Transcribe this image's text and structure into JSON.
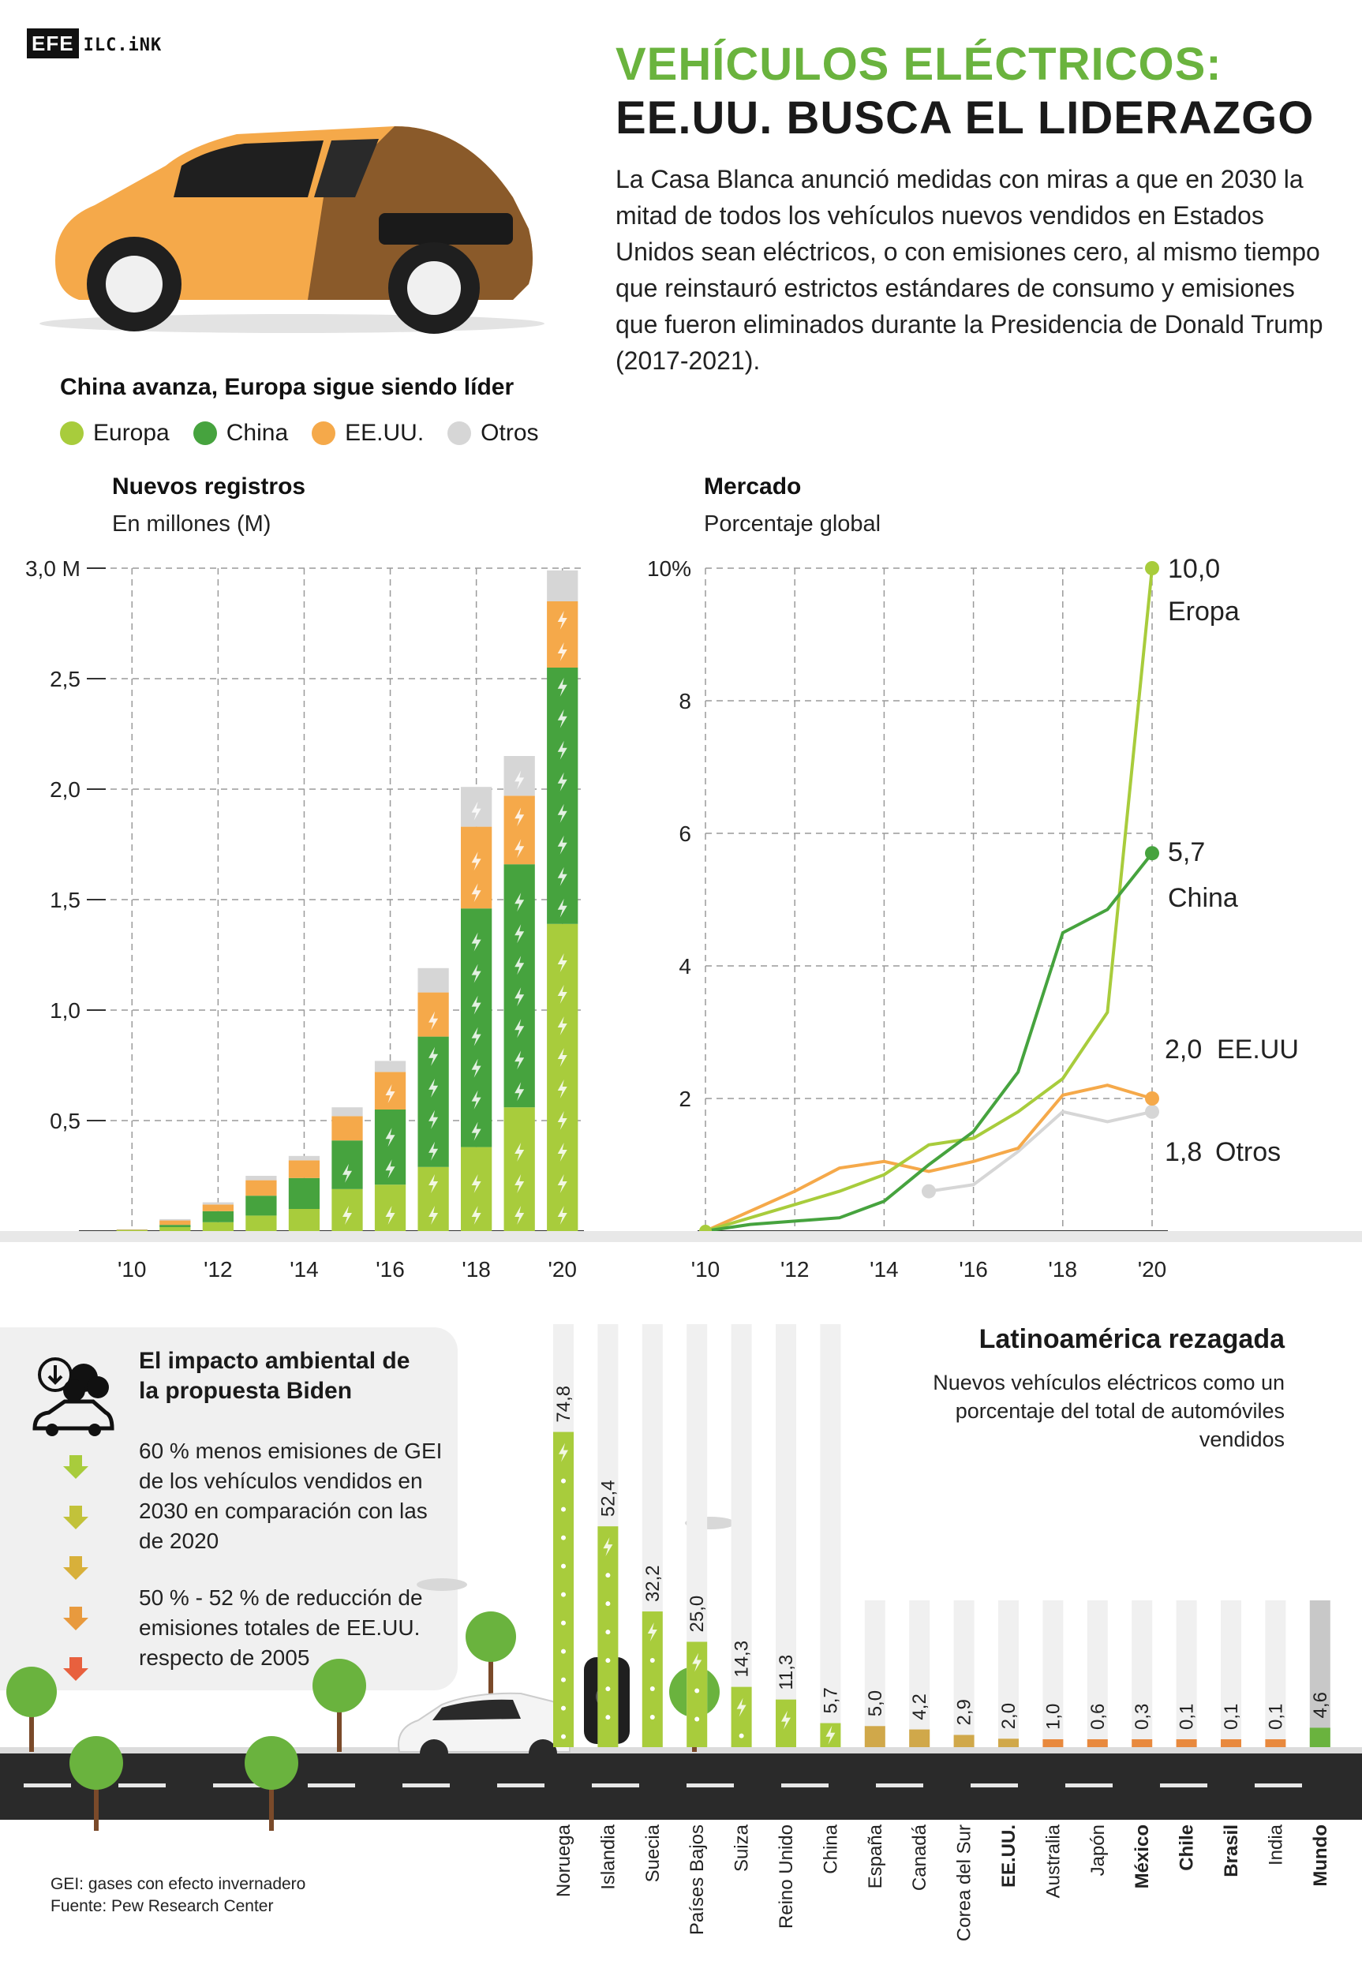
{
  "logo": {
    "efe": "EFE",
    "ilc": "ILC.iNK"
  },
  "header": {
    "title_line1": "VEHÍCULOS ELÉCTRICOS:",
    "title_line2": "EE.UU. BUSCA EL LIDERAZGO",
    "intro": "La Casa Blanca anunció medidas con miras a que en 2030 la mitad de todos los vehículos nuevos vendidos en Estados Unidos sean eléctricos, o con emisiones cero, al mismo tiempo que reinstauró estrictos estándares de consumo y emisiones que fueron eliminados durante la Presidencia de Donald Trump (2017-2021)."
  },
  "section1": {
    "title": "China avanza, Europa sigue siendo líder",
    "legend": [
      {
        "label": "Europa",
        "color": "#a8cc3c"
      },
      {
        "label": "China",
        "color": "#46a33e"
      },
      {
        "label": "EE.UU.",
        "color": "#f5a94a"
      },
      {
        "label": "Otros",
        "color": "#d6d6d6"
      }
    ]
  },
  "chart_data": [
    {
      "type": "bar",
      "stacked": true,
      "title": "Nuevos registros",
      "subtitle": "En millones (M)",
      "categories": [
        "2010",
        "2011",
        "2012",
        "2013",
        "2014",
        "2015",
        "2016",
        "2017",
        "2018",
        "2019",
        "2020"
      ],
      "x_tick_labels": [
        "'10",
        "",
        "'12",
        "",
        "'14",
        "",
        "'16",
        "",
        "'18",
        "",
        "'20"
      ],
      "y_tick_labels": [
        "3,0 M",
        "2,5",
        "2,0",
        "1,5",
        "1,0",
        "0,5"
      ],
      "y_ticks": [
        3.0,
        2.5,
        2.0,
        1.5,
        1.0,
        0.5
      ],
      "ylim": [
        0,
        3.0
      ],
      "grid": true,
      "series": [
        {
          "name": "Europa",
          "color": "#a8cc3c",
          "values": [
            0.004,
            0.018,
            0.04,
            0.07,
            0.1,
            0.19,
            0.21,
            0.29,
            0.38,
            0.56,
            1.39
          ]
        },
        {
          "name": "China",
          "color": "#46a33e",
          "values": [
            0.001,
            0.01,
            0.05,
            0.09,
            0.14,
            0.22,
            0.34,
            0.59,
            1.08,
            1.1,
            1.16
          ]
        },
        {
          "name": "EE.UU.",
          "color": "#f5a94a",
          "values": [
            0.002,
            0.02,
            0.03,
            0.07,
            0.08,
            0.11,
            0.17,
            0.2,
            0.37,
            0.31,
            0.3
          ]
        },
        {
          "name": "Otros",
          "color": "#d6d6d6",
          "values": [
            0.001,
            0.006,
            0.01,
            0.02,
            0.02,
            0.04,
            0.05,
            0.11,
            0.18,
            0.18,
            0.14
          ]
        }
      ]
    },
    {
      "type": "line",
      "title": "Mercado",
      "subtitle": "Porcentaje global",
      "x": [
        2010,
        2011,
        2012,
        2013,
        2014,
        2015,
        2016,
        2017,
        2018,
        2019,
        2020
      ],
      "x_tick_labels": [
        "'10",
        "",
        "'12",
        "",
        "'14",
        "",
        "'16",
        "",
        "'18",
        "",
        "'20"
      ],
      "y_tick_labels": [
        "10%",
        "8",
        "6",
        "4",
        "2"
      ],
      "y_ticks": [
        10,
        8,
        6,
        4,
        2
      ],
      "ylim": [
        0,
        10
      ],
      "grid": true,
      "series": [
        {
          "name": "Eropa",
          "color": "#a8cc3c",
          "values": [
            0,
            0.2,
            0.4,
            0.6,
            0.85,
            1.3,
            1.4,
            1.8,
            2.3,
            3.3,
            10.0
          ],
          "end_label": "10,0"
        },
        {
          "name": "China",
          "color": "#46a33e",
          "values": [
            0,
            0.1,
            0.15,
            0.2,
            0.45,
            1.0,
            1.5,
            2.4,
            4.5,
            4.85,
            5.7
          ],
          "end_label": "5,7"
        },
        {
          "name": "EE.UU",
          "color": "#f5a94a",
          "values": [
            0,
            0.3,
            0.6,
            0.95,
            1.05,
            0.9,
            1.05,
            1.25,
            2.05,
            2.2,
            2.0
          ],
          "end_label": "2,0"
        },
        {
          "name": "Otros",
          "color": "#d6d6d6",
          "values": [
            null,
            null,
            null,
            null,
            null,
            0.6,
            0.7,
            1.2,
            1.8,
            1.65,
            1.8
          ],
          "end_label": "1,8"
        }
      ]
    },
    {
      "type": "bar",
      "title": "Latinoamérica rezagada",
      "subtitle": "Nuevos vehículos eléctricos como un porcentaje del total de automóviles vendidos",
      "categories": [
        "Noruega",
        "Islandia",
        "Suecia",
        "Países Bajos",
        "Suiza",
        "Reino Unido",
        "China",
        "España",
        "Canadá",
        "Corea del Sur",
        "EE.UU.",
        "Australia",
        "Japón",
        "México",
        "Chile",
        "Brasil",
        "India",
        "Mundo"
      ],
      "values": [
        74.8,
        52.4,
        32.2,
        25.0,
        14.3,
        11.3,
        5.7,
        5.0,
        4.2,
        2.9,
        2.0,
        1.0,
        0.6,
        0.3,
        0.1,
        0.1,
        0.1,
        4.6
      ],
      "value_labels": [
        "74,8",
        "52,4",
        "32,2",
        "25,0",
        "14,3",
        "11,3",
        "5,7",
        "5,0",
        "4,2",
        "2,9",
        "2,0",
        "1,0",
        "0,6",
        "0,3",
        "0,1",
        "0,1",
        "0,1",
        "4,6"
      ],
      "bold_categories": [
        "EE.UU.",
        "México",
        "Chile",
        "Brasil",
        "Mundo"
      ],
      "ylim": [
        0,
        100
      ]
    }
  ],
  "impact": {
    "title_line1": "El impacto ambiental de",
    "title_line2": "la propuesta Biden",
    "point1": [
      "60 % menos emisiones de GEI",
      "de los vehículos vendidos en",
      "2030 en comparación con las",
      "de 2020"
    ],
    "point2": [
      "50 % - 52 % de reducción de",
      "emisiones totales de EE.UU.",
      "respecto de 2005"
    ]
  },
  "footer": {
    "note": "GEI: gases con efecto invernadero",
    "source": "Fuente: Pew Research Center"
  }
}
